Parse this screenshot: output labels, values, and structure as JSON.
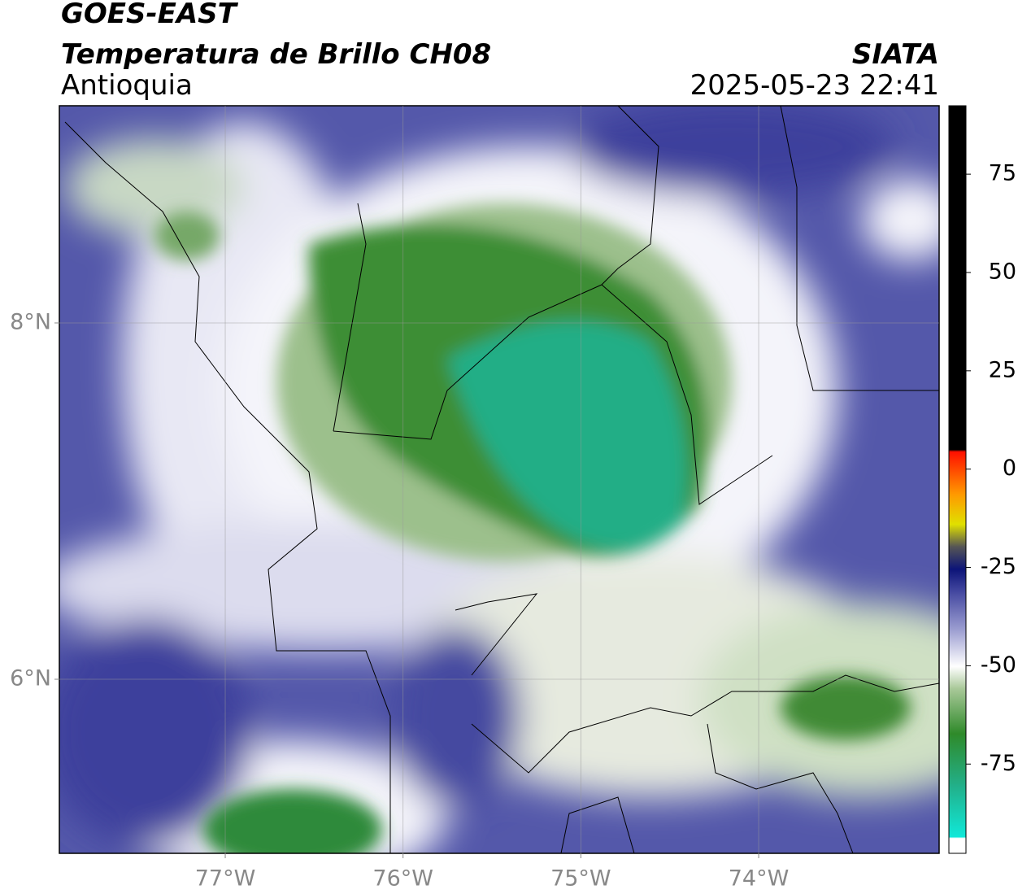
{
  "header": {
    "title": "GOES-EAST",
    "subtitle": "Temperatura de Brillo CH08",
    "region": "Antioquia",
    "source": "SIATA",
    "datetime": "2025-05-23 22:41"
  },
  "map": {
    "xlim": [
      -77.933,
      -72.985
    ],
    "ylim": [
      5.023,
      9.219
    ],
    "xticks": [
      {
        "value": -77,
        "label": "77°W"
      },
      {
        "value": -76,
        "label": "76°W"
      },
      {
        "value": -75,
        "label": "75°W"
      },
      {
        "value": -74,
        "label": "74°W"
      }
    ],
    "yticks": [
      {
        "value": 8,
        "label": "8°N"
      },
      {
        "value": 6,
        "label": "6°N"
      }
    ],
    "grid": true
  },
  "colorbar": {
    "lim": [
      -97.7,
      92.4
    ],
    "ticks": [
      75,
      50,
      25,
      0,
      -25,
      -50,
      -75
    ]
  }
}
